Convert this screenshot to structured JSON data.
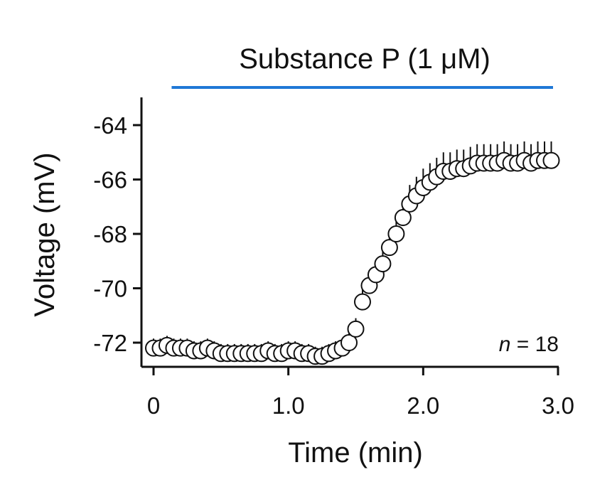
{
  "colors": {
    "drug_bar": "#1f78d6",
    "axis": "#111111",
    "marker_fill": "#ffffff",
    "marker_stroke": "#111111"
  },
  "chart_data": {
    "type": "scatter",
    "title": "",
    "drug_label": "Substance P (1 μM)",
    "drug_bar": {
      "start_min": 0.15,
      "end_min": 3.0
    },
    "xlabel": "Time (min)",
    "ylabel": "Voltage (mV)",
    "xlim": [
      -0.1,
      3.0
    ],
    "ylim": [
      -73.0,
      -63.0
    ],
    "xticks": [
      0,
      1.0,
      2.0,
      3.0
    ],
    "xtick_labels": [
      "0",
      "1.0",
      "2.0",
      "3.0"
    ],
    "yticks": [
      -64,
      -66,
      -68,
      -70,
      -72
    ],
    "ytick_labels": [
      "-64",
      "-66",
      "-68",
      "-70",
      "-72"
    ],
    "annotation": {
      "n_italic": "n",
      "n_value": " = 18"
    },
    "grid": false,
    "series": [
      {
        "x": [
          0.0,
          0.05,
          0.1,
          0.15,
          0.2,
          0.25,
          0.3,
          0.35,
          0.4,
          0.45,
          0.5,
          0.55,
          0.6,
          0.65,
          0.7,
          0.75,
          0.8,
          0.85,
          0.9,
          0.95,
          1.0,
          1.05,
          1.1,
          1.15,
          1.2,
          1.25,
          1.3,
          1.35,
          1.4,
          1.45,
          1.5,
          1.55,
          1.6,
          1.65,
          1.7,
          1.75,
          1.8,
          1.85,
          1.9,
          1.95,
          2.0,
          2.05,
          2.1,
          2.15,
          2.2,
          2.25,
          2.3,
          2.35,
          2.4,
          2.45,
          2.5,
          2.55,
          2.6,
          2.65,
          2.7,
          2.75,
          2.8,
          2.85,
          2.9,
          2.95
        ],
        "y": [
          -72.2,
          -72.2,
          -72.1,
          -72.2,
          -72.2,
          -72.2,
          -72.3,
          -72.3,
          -72.2,
          -72.3,
          -72.4,
          -72.4,
          -72.4,
          -72.4,
          -72.4,
          -72.4,
          -72.4,
          -72.3,
          -72.4,
          -72.4,
          -72.3,
          -72.3,
          -72.4,
          -72.4,
          -72.5,
          -72.5,
          -72.4,
          -72.3,
          -72.2,
          -72.0,
          -71.5,
          -70.5,
          -69.9,
          -69.5,
          -69.1,
          -68.5,
          -68.0,
          -67.4,
          -66.9,
          -66.6,
          -66.3,
          -66.1,
          -65.9,
          -65.7,
          -65.7,
          -65.6,
          -65.6,
          -65.5,
          -65.4,
          -65.4,
          -65.4,
          -65.4,
          -65.3,
          -65.4,
          -65.4,
          -65.3,
          -65.4,
          -65.3,
          -65.3,
          -65.3
        ],
        "err": [
          0.35,
          0.35,
          0.35,
          0.35,
          0.35,
          0.35,
          0.35,
          0.35,
          0.35,
          0.35,
          0.35,
          0.35,
          0.35,
          0.35,
          0.35,
          0.35,
          0.35,
          0.35,
          0.35,
          0.35,
          0.35,
          0.35,
          0.35,
          0.35,
          0.35,
          0.35,
          0.35,
          0.35,
          0.35,
          0.35,
          0.4,
          0.45,
          0.5,
          0.5,
          0.55,
          0.6,
          0.6,
          0.65,
          0.7,
          0.7,
          0.7,
          0.7,
          0.7,
          0.7,
          0.7,
          0.7,
          0.7,
          0.7,
          0.7,
          0.7,
          0.7,
          0.7,
          0.7,
          0.7,
          0.7,
          0.7,
          0.7,
          0.7,
          0.7,
          0.7
        ]
      }
    ]
  }
}
